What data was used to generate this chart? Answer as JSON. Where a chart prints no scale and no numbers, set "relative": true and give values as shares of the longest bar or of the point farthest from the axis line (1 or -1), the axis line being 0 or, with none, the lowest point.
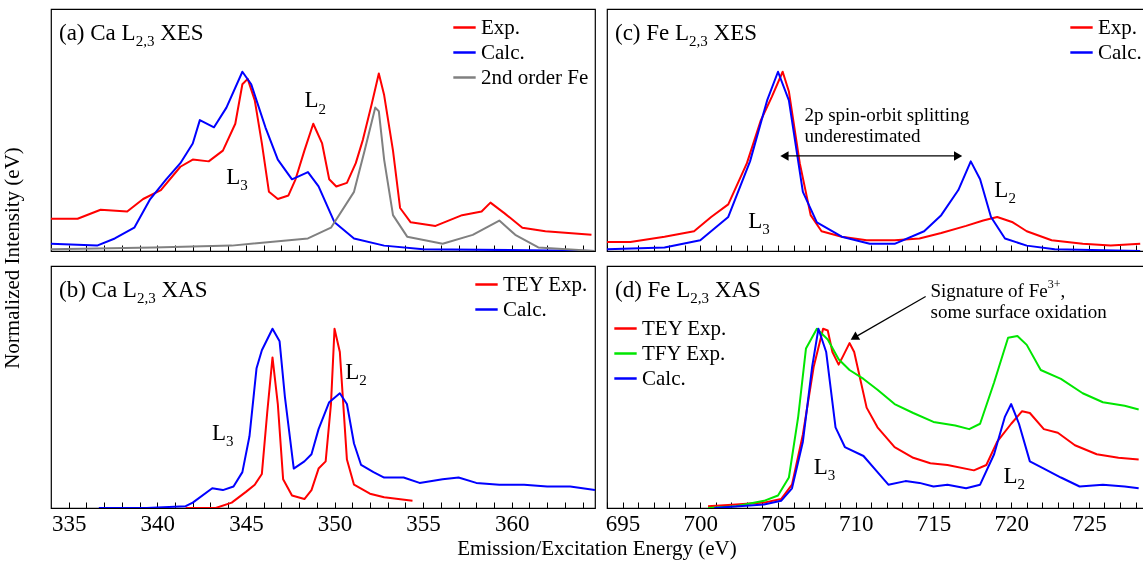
{
  "chart_data": [
    {
      "type": "line",
      "title": "(a) Ca L$_{2,3}$ XES",
      "ylabel": "Normalized Intensity (eV)",
      "relative": true,
      "legend": "top right",
      "tick_labels": false,
      "xlim": [
        334,
        364.7
      ],
      "xticks": [
        335,
        {
          "value": 336,
          "label": null
        },
        {
          "value": 337,
          "label": null
        },
        {
          "value": 338,
          "label": null
        },
        {
          "value": 339,
          "label": null
        },
        340,
        {
          "value": 341,
          "label": null
        },
        {
          "value": 342,
          "label": null
        },
        {
          "value": 343,
          "label": null
        },
        {
          "value": 344,
          "label": null
        },
        345,
        {
          "value": 346,
          "label": null
        },
        {
          "value": 347,
          "label": null
        },
        {
          "value": 348,
          "label": null
        },
        {
          "value": 349,
          "label": null
        },
        350,
        {
          "value": 351,
          "label": null
        },
        {
          "value": 352,
          "label": null
        },
        {
          "value": 353,
          "label": null
        },
        {
          "value": 354,
          "label": null
        },
        355,
        {
          "value": 356,
          "label": null
        },
        {
          "value": 357,
          "label": null
        },
        {
          "value": 358,
          "label": null
        },
        {
          "value": 359,
          "label": null
        },
        360,
        {
          "value": 361,
          "label": null
        },
        {
          "value": 362,
          "label": null
        },
        {
          "value": 363,
          "label": null
        },
        {
          "value": 364,
          "label": null
        }
      ],
      "annotations": [
        "L$_{3}$",
        "L$_{2}$"
      ],
      "series": [
        {
          "name": "Exp.",
          "color": "#ff0000",
          "x": [
            334,
            335.5,
            336.8,
            338.3,
            339.2,
            340.2,
            341.3,
            342,
            342.9,
            343.7,
            344.4,
            344.8,
            345.1,
            345.5,
            345.9,
            346.3,
            346.8,
            347.4,
            347.8,
            348.3,
            348.8,
            349.3,
            349.7,
            350.1,
            350.7,
            351.2,
            351.6,
            352.1,
            352.5,
            352.8,
            353.3,
            353.7,
            354.3,
            355.7,
            357.2,
            358.3,
            358.8,
            359.6,
            360.6,
            361.9,
            363.2,
            364.5
          ],
          "values": [
            0.18,
            0.18,
            0.23,
            0.22,
            0.29,
            0.34,
            0.47,
            0.51,
            0.5,
            0.56,
            0.71,
            0.93,
            0.96,
            0.84,
            0.6,
            0.33,
            0.29,
            0.31,
            0.4,
            0.56,
            0.71,
            0.6,
            0.4,
            0.36,
            0.38,
            0.49,
            0.62,
            0.82,
            0.99,
            0.87,
            0.56,
            0.24,
            0.16,
            0.14,
            0.2,
            0.22,
            0.27,
            0.21,
            0.13,
            0.11,
            0.1,
            0.09
          ]
        },
        {
          "name": "Calc.",
          "color": "#0000ff",
          "x": [
            334,
            336.6,
            337.6,
            338.7,
            339.6,
            340.5,
            341.3,
            342,
            342.4,
            343.2,
            343.9,
            344.8,
            345.3,
            346.1,
            346.8,
            347.6,
            348.5,
            349.1,
            350,
            351.1,
            352.8,
            355,
            364.7
          ],
          "values": [
            0.04,
            0.03,
            0.07,
            0.13,
            0.29,
            0.4,
            0.49,
            0.6,
            0.73,
            0.69,
            0.8,
            1,
            0.93,
            0.69,
            0.51,
            0.4,
            0.44,
            0.36,
            0.16,
            0.07,
            0.03,
            0.01,
            0
          ]
        },
        {
          "name": "2nd order Fe",
          "color": "#808080",
          "x": [
            334,
            339.8,
            344.2,
            348.5,
            349.8,
            351.1,
            351.7,
            352.3,
            352.5,
            352.8,
            353.3,
            354.1,
            356.1,
            357.8,
            359.3,
            360.2,
            361.5,
            364.7
          ],
          "values": [
            0.01,
            0.02,
            0.03,
            0.07,
            0.13,
            0.33,
            0.56,
            0.8,
            0.78,
            0.51,
            0.2,
            0.08,
            0.04,
            0.09,
            0.17,
            0.09,
            0.02,
            0
          ]
        }
      ]
    },
    {
      "type": "line",
      "title": "(b) Ca L$_{2,3}$ XAS",
      "xlabel": "Emission/Excitation Energy (eV)",
      "relative": true,
      "legend": "top right",
      "tick_labels": "x",
      "xlim": [
        334,
        364.7
      ],
      "xticks": [
        335,
        {
          "value": 336,
          "label": null
        },
        {
          "value": 337,
          "label": null
        },
        {
          "value": 338,
          "label": null
        },
        {
          "value": 339,
          "label": null
        },
        340,
        {
          "value": 341,
          "label": null
        },
        {
          "value": 342,
          "label": null
        },
        {
          "value": 343,
          "label": null
        },
        {
          "value": 344,
          "label": null
        },
        345,
        {
          "value": 346,
          "label": null
        },
        {
          "value": 347,
          "label": null
        },
        {
          "value": 348,
          "label": null
        },
        {
          "value": 349,
          "label": null
        },
        350,
        {
          "value": 351,
          "label": null
        },
        {
          "value": 352,
          "label": null
        },
        {
          "value": 353,
          "label": null
        },
        {
          "value": 354,
          "label": null
        },
        355,
        {
          "value": 356,
          "label": null
        },
        {
          "value": 357,
          "label": null
        },
        {
          "value": 358,
          "label": null
        },
        {
          "value": 359,
          "label": null
        },
        360,
        {
          "value": 361,
          "label": null
        },
        {
          "value": 362,
          "label": null
        },
        {
          "value": 363,
          "label": null
        },
        {
          "value": 364,
          "label": null
        }
      ],
      "annotations": [
        "L$_{3}$",
        "L$_{2}$"
      ],
      "series": [
        {
          "name": "TEY Exp.",
          "color": "#ff0000",
          "x": [
            341.6,
            343.3,
            344.2,
            345,
            345.5,
            345.9,
            346.2,
            346.5,
            346.8,
            347.1,
            347.6,
            348.3,
            348.7,
            349.1,
            349.5,
            349.8,
            350,
            350.3,
            350.7,
            351.1,
            352,
            352.8,
            354.4
          ],
          "values": [
            0,
            0,
            0.03,
            0.09,
            0.13,
            0.19,
            0.53,
            0.84,
            0.58,
            0.16,
            0.07,
            0.05,
            0.1,
            0.22,
            0.26,
            0.58,
            1,
            0.87,
            0.27,
            0.13,
            0.08,
            0.06,
            0.04
          ]
        },
        {
          "name": "Calc.",
          "color": "#0000ff",
          "x": [
            336.7,
            339.4,
            341.6,
            342,
            343.1,
            343.7,
            344.3,
            344.8,
            345.2,
            345.6,
            345.9,
            346.5,
            346.9,
            347.2,
            347.7,
            348.3,
            348.7,
            349.1,
            349.7,
            350.3,
            350.7,
            351.1,
            351.5,
            352.2,
            352.8,
            353.9,
            354.8,
            356.1,
            357,
            358,
            359.3,
            360.7,
            362,
            363.3,
            364.7
          ],
          "values": [
            0,
            0,
            0.01,
            0.03,
            0.11,
            0.1,
            0.12,
            0.2,
            0.4,
            0.78,
            0.88,
            1,
            0.93,
            0.62,
            0.22,
            0.26,
            0.3,
            0.44,
            0.59,
            0.64,
            0.58,
            0.36,
            0.24,
            0.2,
            0.17,
            0.17,
            0.14,
            0.16,
            0.17,
            0.14,
            0.13,
            0.13,
            0.12,
            0.12,
            0.1
          ]
        }
      ]
    },
    {
      "type": "line",
      "title": "(c) Fe L$_{2,3}$ XES",
      "relative": true,
      "legend": "top right",
      "tick_labels": false,
      "xlim": [
        694,
        728.8
      ],
      "xticks": [
        {
          "value": 694,
          "label": null
        },
        695,
        {
          "value": 696,
          "label": null
        },
        {
          "value": 697,
          "label": null
        },
        {
          "value": 698,
          "label": null
        },
        {
          "value": 699,
          "label": null
        },
        700,
        {
          "value": 701,
          "label": null
        },
        {
          "value": 702,
          "label": null
        },
        {
          "value": 703,
          "label": null
        },
        {
          "value": 704,
          "label": null
        },
        705,
        {
          "value": 706,
          "label": null
        },
        {
          "value": 707,
          "label": null
        },
        {
          "value": 708,
          "label": null
        },
        {
          "value": 709,
          "label": null
        },
        710,
        {
          "value": 711,
          "label": null
        },
        {
          "value": 712,
          "label": null
        },
        {
          "value": 713,
          "label": null
        },
        {
          "value": 714,
          "label": null
        },
        715,
        {
          "value": 716,
          "label": null
        },
        {
          "value": 717,
          "label": null
        },
        {
          "value": 718,
          "label": null
        },
        {
          "value": 719,
          "label": null
        },
        720,
        {
          "value": 721,
          "label": null
        },
        {
          "value": 722,
          "label": null
        },
        {
          "value": 723,
          "label": null
        },
        {
          "value": 724,
          "label": null
        },
        725,
        {
          "value": 726,
          "label": null
        },
        {
          "value": 727,
          "label": null
        },
        {
          "value": 728,
          "label": null
        }
      ],
      "annotations": [
        "2p spin-orbit splitting\nunderestimated",
        "L$_{3}$",
        "L$_{2}$"
      ],
      "series": [
        {
          "name": "Exp.",
          "color": "#ff0000",
          "x": [
            694,
            695.5,
            697.7,
            699.6,
            700.7,
            701.8,
            703,
            703.9,
            704.6,
            705.3,
            705.7,
            706.4,
            707.1,
            707.8,
            709.1,
            710.7,
            712.5,
            714.1,
            715.5,
            717.1,
            718.2,
            719.1,
            720.1,
            721,
            722.6,
            724.6,
            726.4,
            728.3
          ],
          "values": [
            0.05,
            0.05,
            0.08,
            0.11,
            0.19,
            0.26,
            0.49,
            0.73,
            0.86,
            1,
            0.89,
            0.49,
            0.2,
            0.11,
            0.08,
            0.06,
            0.06,
            0.07,
            0.1,
            0.14,
            0.17,
            0.19,
            0.16,
            0.11,
            0.06,
            0.04,
            0.03,
            0.04
          ]
        },
        {
          "name": "Calc.",
          "color": "#0000ff",
          "x": [
            694,
            697.7,
            700,
            701.8,
            703.2,
            704.3,
            705,
            705.7,
            706.6,
            707.5,
            709.1,
            710.9,
            712.5,
            714.4,
            715.5,
            716.6,
            717.4,
            718,
            718.7,
            719.6,
            721,
            722.8,
            728.3
          ],
          "values": [
            0.01,
            0.02,
            0.06,
            0.19,
            0.5,
            0.84,
            1,
            0.84,
            0.33,
            0.16,
            0.08,
            0.04,
            0.04,
            0.11,
            0.2,
            0.34,
            0.5,
            0.4,
            0.19,
            0.07,
            0.03,
            0.01,
            0
          ]
        }
      ]
    },
    {
      "type": "line",
      "title": "(d) Fe L$_{2,3}$ XAS",
      "relative": true,
      "legend": "top left",
      "tick_labels": "x",
      "xlim": [
        694,
        728.8
      ],
      "xticks": [
        {
          "value": 694,
          "label": null
        },
        695,
        {
          "value": 696,
          "label": null
        },
        {
          "value": 697,
          "label": null
        },
        {
          "value": 698,
          "label": null
        },
        {
          "value": 699,
          "label": null
        },
        700,
        {
          "value": 701,
          "label": null
        },
        {
          "value": 702,
          "label": null
        },
        {
          "value": 703,
          "label": null
        },
        {
          "value": 704,
          "label": null
        },
        705,
        {
          "value": 706,
          "label": null
        },
        {
          "value": 707,
          "label": null
        },
        {
          "value": 708,
          "label": null
        },
        {
          "value": 709,
          "label": null
        },
        710,
        {
          "value": 711,
          "label": null
        },
        {
          "value": 712,
          "label": null
        },
        {
          "value": 713,
          "label": null
        },
        {
          "value": 714,
          "label": null
        },
        715,
        {
          "value": 716,
          "label": null
        },
        {
          "value": 717,
          "label": null
        },
        {
          "value": 718,
          "label": null
        },
        {
          "value": 719,
          "label": null
        },
        720,
        {
          "value": 721,
          "label": null
        },
        {
          "value": 722,
          "label": null
        },
        {
          "value": 723,
          "label": null
        },
        {
          "value": 724,
          "label": null
        },
        725,
        {
          "value": 726,
          "label": null
        },
        {
          "value": 727,
          "label": null
        },
        {
          "value": 728,
          "label": null
        }
      ],
      "annotations": [
        "Signature of Fe$^{3+}$,\nsome surface oxidation",
        "L$_{3}$",
        "L$_{2}$"
      ],
      "series": [
        {
          "name": "TEY Exp.",
          "color": "#ff0000",
          "x": [
            700.5,
            702.3,
            704.1,
            705.2,
            705.9,
            706.6,
            707.3,
            707.9,
            708.2,
            708.5,
            708.9,
            709.2,
            709.6,
            709.9,
            710.7,
            711.4,
            712.5,
            713.7,
            714.8,
            715.9,
            717.6,
            718.4,
            719.1,
            720,
            720.7,
            721.2,
            722.1,
            723,
            724.1,
            725.5,
            726.9,
            728.2
          ],
          "values": [
            0.01,
            0.02,
            0.03,
            0.05,
            0.13,
            0.41,
            0.79,
            1,
            0.99,
            0.87,
            0.8,
            0.85,
            0.92,
            0.87,
            0.56,
            0.45,
            0.34,
            0.28,
            0.25,
            0.24,
            0.21,
            0.24,
            0.37,
            0.47,
            0.54,
            0.53,
            0.44,
            0.42,
            0.35,
            0.3,
            0.28,
            0.27
          ]
        },
        {
          "name": "TFY Exp.",
          "color": "#00e600",
          "x": [
            700.5,
            702.3,
            704.1,
            705,
            705.7,
            706.3,
            706.8,
            707.5,
            708.2,
            708.9,
            709.6,
            710.5,
            711.4,
            712.5,
            713.7,
            715,
            716.4,
            717.3,
            718,
            718.9,
            719.8,
            720.4,
            721,
            721.9,
            723.2,
            724.6,
            725.9,
            727.3,
            728.2
          ],
          "values": [
            0,
            0.01,
            0.04,
            0.07,
            0.17,
            0.51,
            0.89,
            1,
            0.94,
            0.83,
            0.77,
            0.72,
            0.66,
            0.58,
            0.53,
            0.48,
            0.46,
            0.44,
            0.47,
            0.7,
            0.95,
            0.96,
            0.91,
            0.77,
            0.72,
            0.64,
            0.59,
            0.57,
            0.55
          ]
        },
        {
          "name": "Calc.",
          "color": "#0000ff",
          "x": [
            700.9,
            704.1,
            705.2,
            705.9,
            706.6,
            707.2,
            707.6,
            708.1,
            708.7,
            709.3,
            710.5,
            711.4,
            712.1,
            713.2,
            714.1,
            715,
            715.9,
            717.1,
            718,
            718.9,
            719.6,
            720,
            720.5,
            721.2,
            722.1,
            723.2,
            724.4,
            725.9,
            727.3,
            728.2
          ],
          "values": [
            0,
            0.02,
            0.04,
            0.11,
            0.37,
            0.79,
            1,
            0.87,
            0.45,
            0.34,
            0.29,
            0.2,
            0.13,
            0.15,
            0.14,
            0.12,
            0.13,
            0.11,
            0.13,
            0.3,
            0.51,
            0.58,
            0.47,
            0.26,
            0.22,
            0.17,
            0.12,
            0.13,
            0.12,
            0.11
          ]
        }
      ]
    }
  ]
}
